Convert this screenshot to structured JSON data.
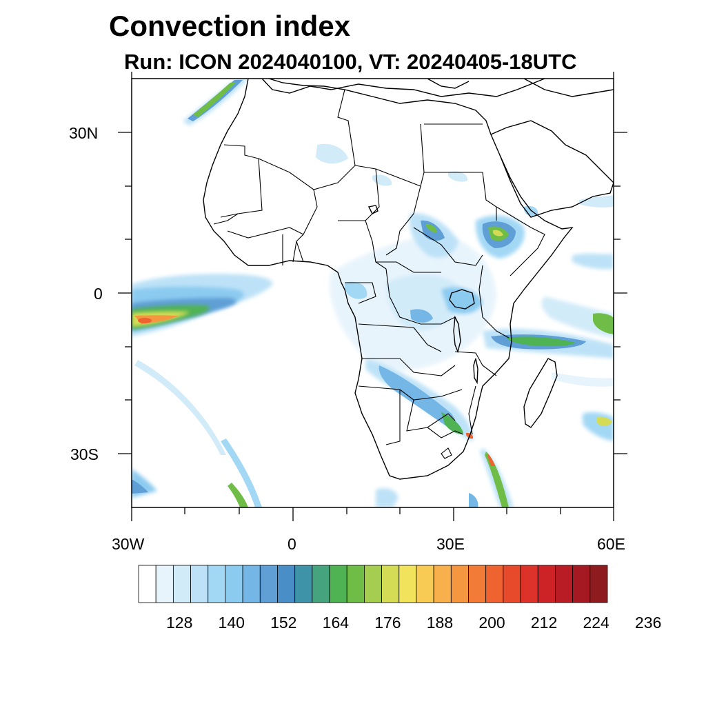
{
  "header": {
    "title": "Convection index",
    "subtitle": "Run: ICON 2024040100,  VT: 20240405-18UTC"
  },
  "axes": {
    "lon_ticks": [
      "30W",
      "0",
      "30E",
      "60E"
    ],
    "lat_ticks": [
      "30N",
      "0",
      "30S"
    ],
    "lon_range": [
      -30,
      60
    ],
    "lat_range": [
      -40,
      40
    ]
  },
  "colorbar": {
    "labels": [
      "128",
      "140",
      "152",
      "164",
      "176",
      "188",
      "200",
      "212",
      "224",
      "236"
    ],
    "colors": [
      "#ffffff",
      "#e8f4fc",
      "#d2ebf9",
      "#bde2f7",
      "#a3d8f5",
      "#8ccbf0",
      "#74b6e6",
      "#5f9fd6",
      "#4a8ec7",
      "#3f93a8",
      "#45a47d",
      "#4fb253",
      "#6fbd47",
      "#a5cd4f",
      "#d4dc55",
      "#f1e45c",
      "#f8cb55",
      "#f8b04c",
      "#f59641",
      "#f27c37",
      "#ee6330",
      "#e64a2b",
      "#dc3229",
      "#cd2327",
      "#b91c24",
      "#a51a22",
      "#8e1b1e"
    ]
  },
  "chart_data": {
    "type": "heatmap",
    "variable": "Convection index",
    "x_range": [
      -30,
      60
    ],
    "y_range": [
      -40,
      40
    ],
    "colorbar_ticks": [
      128,
      140,
      152,
      164,
      176,
      188,
      200,
      212,
      224,
      236
    ]
  }
}
